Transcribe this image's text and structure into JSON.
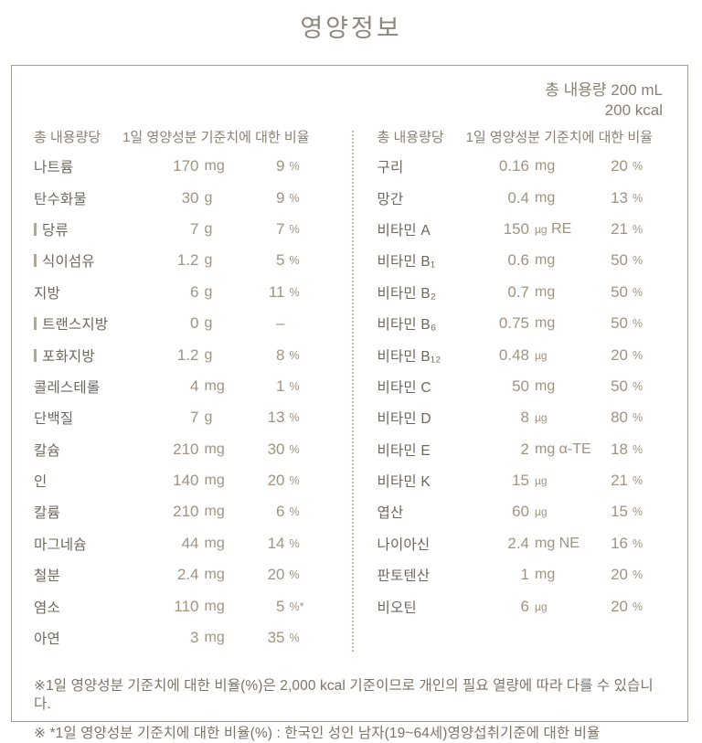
{
  "title": "영양정보",
  "serving": {
    "total_volume": "총 내용량 200 mL",
    "calories": "200 kcal"
  },
  "tables": [
    {
      "col_amount": "총 내용량당",
      "col_percent": "1일 영양성분 기준치에 대한 비율",
      "rows": [
        {
          "label": "나트륨",
          "indent": false,
          "value": "170",
          "unit": "mg",
          "pct": "9",
          "pct_sign": "%"
        },
        {
          "label": "탄수화물",
          "indent": false,
          "value": "30",
          "unit": "g",
          "pct": "9",
          "pct_sign": "%"
        },
        {
          "label": "당류",
          "indent": true,
          "value": "7",
          "unit": "g",
          "pct": "7",
          "pct_sign": "%"
        },
        {
          "label": "식이섬유",
          "indent": true,
          "value": "1.2",
          "unit": "g",
          "pct": "5",
          "pct_sign": "%"
        },
        {
          "label": "지방",
          "indent": false,
          "value": "6",
          "unit": "g",
          "pct": "11",
          "pct_sign": "%"
        },
        {
          "label": "트랜스지방",
          "indent": true,
          "value": "0",
          "unit": "g",
          "pct": "–",
          "pct_sign": ""
        },
        {
          "label": "포화지방",
          "indent": true,
          "value": "1.2",
          "unit": "g",
          "pct": "8",
          "pct_sign": "%"
        },
        {
          "label": "콜레스테롤",
          "indent": false,
          "value": "4",
          "unit": "mg",
          "pct": "1",
          "pct_sign": "%"
        },
        {
          "label": "단백질",
          "indent": false,
          "value": "7",
          "unit": "g",
          "pct": "13",
          "pct_sign": "%"
        },
        {
          "label": "칼슘",
          "indent": false,
          "value": "210",
          "unit": "mg",
          "pct": "30",
          "pct_sign": "%"
        },
        {
          "label": "인",
          "indent": false,
          "value": "140",
          "unit": "mg",
          "pct": "20",
          "pct_sign": "%"
        },
        {
          "label": "칼륨",
          "indent": false,
          "value": "210",
          "unit": "mg",
          "pct": "6",
          "pct_sign": "%"
        },
        {
          "label": "마그네슘",
          "indent": false,
          "value": "44",
          "unit": "mg",
          "pct": "14",
          "pct_sign": "%"
        },
        {
          "label": "철분",
          "indent": false,
          "value": "2.4",
          "unit": "mg",
          "pct": "20",
          "pct_sign": "%"
        },
        {
          "label": "염소",
          "indent": false,
          "value": "110",
          "unit": "mg",
          "pct": "5",
          "pct_sign": "%*"
        },
        {
          "label": "아연",
          "indent": false,
          "value": "3",
          "unit": "mg",
          "pct": "35",
          "pct_sign": "%"
        }
      ]
    },
    {
      "col_amount": "총 내용량당",
      "col_percent": "1일 영양성분 기준치에 대한 비율",
      "rows": [
        {
          "label": "구리",
          "indent": false,
          "value": "0.16",
          "unit": "mg",
          "pct": "20",
          "pct_sign": "%"
        },
        {
          "label": "망간",
          "indent": false,
          "value": "0.4",
          "unit": "mg",
          "pct": "13",
          "pct_sign": "%"
        },
        {
          "label": "비타민 A",
          "indent": false,
          "value": "150",
          "unit": "µg RE",
          "pct": "21",
          "pct_sign": "%"
        },
        {
          "label": "비타민 B₁",
          "indent": false,
          "value": "0.6",
          "unit": "mg",
          "pct": "50",
          "pct_sign": "%"
        },
        {
          "label": "비타민 B₂",
          "indent": false,
          "value": "0.7",
          "unit": "mg",
          "pct": "50",
          "pct_sign": "%"
        },
        {
          "label": "비타민 B₆",
          "indent": false,
          "value": "0.75",
          "unit": "mg",
          "pct": "50",
          "pct_sign": "%"
        },
        {
          "label": "비타민 B₁₂",
          "indent": false,
          "value": "0.48",
          "unit": "µg",
          "pct": "20",
          "pct_sign": "%"
        },
        {
          "label": "비타민 C",
          "indent": false,
          "value": "50",
          "unit": "mg",
          "pct": "50",
          "pct_sign": "%"
        },
        {
          "label": "비타민 D",
          "indent": false,
          "value": "8",
          "unit": "µg",
          "pct": "80",
          "pct_sign": "%"
        },
        {
          "label": "비타민 E",
          "indent": false,
          "value": "2",
          "unit": "mg α-TE",
          "pct": "18",
          "pct_sign": "%"
        },
        {
          "label": "비타민 K",
          "indent": false,
          "value": "15",
          "unit": "µg",
          "pct": "21",
          "pct_sign": "%"
        },
        {
          "label": "엽산",
          "indent": false,
          "value": "60",
          "unit": "µg",
          "pct": "15",
          "pct_sign": "%"
        },
        {
          "label": "나이아신",
          "indent": false,
          "value": "2.4",
          "unit": "mg NE",
          "pct": "16",
          "pct_sign": "%"
        },
        {
          "label": "판토텐산",
          "indent": false,
          "value": "1",
          "unit": "mg",
          "pct": "20",
          "pct_sign": "%"
        },
        {
          "label": "비오틴",
          "indent": false,
          "value": "6",
          "unit": "µg",
          "pct": "20",
          "pct_sign": "%"
        }
      ]
    }
  ],
  "footnotes": [
    "※1일 영양성분 기준치에 대한 비율(%)은 2,000 kcal 기준이므로 개인의 필요 열량에 따라 다를 수 있습니다.",
    "※ *1일 영양성분 기준치에 대한 비율(%) : 한국인 성인 남자(19~64세)영양섭취기준에 대한 비율"
  ],
  "colors": {
    "title_text": "#8e867d",
    "label_text": "#6d675e",
    "value_text": "#a29380",
    "header_text": "#8c8174",
    "footnote_text": "#7d7368",
    "box_border": "#a39c93",
    "divider_dots": "#c9b8a3",
    "subitem_bar": "#b9a48e"
  }
}
